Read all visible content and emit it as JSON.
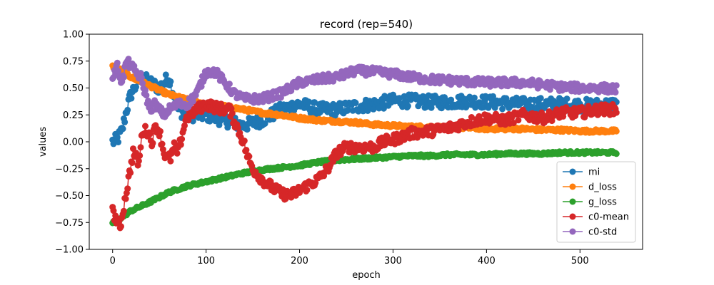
{
  "chart_data": {
    "type": "line",
    "title": "record (rep=540)",
    "xlabel": "epoch",
    "ylabel": "values",
    "xlim": [
      -25,
      567
    ],
    "ylim": [
      -1.0,
      1.0
    ],
    "x_ticks": [
      0,
      100,
      200,
      300,
      400,
      500
    ],
    "y_ticks": [
      -1.0,
      -0.75,
      -0.5,
      -0.25,
      0.0,
      0.25,
      0.5,
      0.75,
      1.0
    ],
    "y_tick_labels": [
      "−1.00",
      "−0.75",
      "−0.50",
      "−0.25",
      "0.00",
      "0.25",
      "0.50",
      "0.75",
      "1.00"
    ],
    "x_tick_labels": [
      "0",
      "100",
      "200",
      "300",
      "400",
      "500"
    ],
    "grid": false,
    "legend_position": "lower-right",
    "marker": "circle",
    "x_range": [
      0,
      539
    ],
    "series": [
      {
        "name": "mi",
        "color": "#1f77b4",
        "anchors": [
          [
            0,
            0.0
          ],
          [
            5,
            0.02
          ],
          [
            10,
            0.1
          ],
          [
            15,
            0.3
          ],
          [
            20,
            0.45
          ],
          [
            30,
            0.6
          ],
          [
            40,
            0.55
          ],
          [
            50,
            0.5
          ],
          [
            60,
            0.6
          ],
          [
            65,
            0.45
          ],
          [
            70,
            0.3
          ],
          [
            80,
            0.25
          ],
          [
            100,
            0.25
          ],
          [
            120,
            0.2
          ],
          [
            140,
            0.15
          ],
          [
            160,
            0.2
          ],
          [
            180,
            0.3
          ],
          [
            200,
            0.35
          ],
          [
            220,
            0.3
          ],
          [
            240,
            0.3
          ],
          [
            260,
            0.33
          ],
          [
            280,
            0.35
          ],
          [
            300,
            0.38
          ],
          [
            320,
            0.38
          ],
          [
            340,
            0.37
          ],
          [
            360,
            0.37
          ],
          [
            380,
            0.38
          ],
          [
            400,
            0.37
          ],
          [
            420,
            0.36
          ],
          [
            440,
            0.35
          ],
          [
            460,
            0.35
          ],
          [
            480,
            0.35
          ],
          [
            500,
            0.34
          ],
          [
            520,
            0.34
          ],
          [
            539,
            0.35
          ]
        ],
        "noise": 0.06
      },
      {
        "name": "d_loss",
        "color": "#ff7f0e",
        "anchors": [
          [
            0,
            0.7
          ],
          [
            10,
            0.66
          ],
          [
            20,
            0.6
          ],
          [
            40,
            0.52
          ],
          [
            60,
            0.44
          ],
          [
            80,
            0.39
          ],
          [
            100,
            0.35
          ],
          [
            120,
            0.33
          ],
          [
            140,
            0.3
          ],
          [
            160,
            0.27
          ],
          [
            180,
            0.25
          ],
          [
            200,
            0.22
          ],
          [
            220,
            0.2
          ],
          [
            240,
            0.19
          ],
          [
            260,
            0.18
          ],
          [
            280,
            0.16
          ],
          [
            300,
            0.15
          ],
          [
            320,
            0.14
          ],
          [
            340,
            0.14
          ],
          [
            360,
            0.13
          ],
          [
            380,
            0.13
          ],
          [
            400,
            0.12
          ],
          [
            420,
            0.12
          ],
          [
            440,
            0.12
          ],
          [
            460,
            0.11
          ],
          [
            480,
            0.11
          ],
          [
            500,
            0.1
          ],
          [
            520,
            0.1
          ],
          [
            539,
            0.1
          ]
        ],
        "noise": 0.015
      },
      {
        "name": "g_loss",
        "color": "#2ca02c",
        "anchors": [
          [
            0,
            -0.75
          ],
          [
            10,
            -0.7
          ],
          [
            20,
            -0.64
          ],
          [
            40,
            -0.56
          ],
          [
            60,
            -0.47
          ],
          [
            80,
            -0.41
          ],
          [
            100,
            -0.37
          ],
          [
            120,
            -0.33
          ],
          [
            140,
            -0.29
          ],
          [
            160,
            -0.26
          ],
          [
            180,
            -0.24
          ],
          [
            200,
            -0.22
          ],
          [
            220,
            -0.19
          ],
          [
            240,
            -0.17
          ],
          [
            260,
            -0.16
          ],
          [
            280,
            -0.15
          ],
          [
            300,
            -0.14
          ],
          [
            320,
            -0.13
          ],
          [
            340,
            -0.13
          ],
          [
            360,
            -0.12
          ],
          [
            380,
            -0.12
          ],
          [
            400,
            -0.12
          ],
          [
            420,
            -0.11
          ],
          [
            440,
            -0.11
          ],
          [
            460,
            -0.11
          ],
          [
            480,
            -0.1
          ],
          [
            500,
            -0.1
          ],
          [
            520,
            -0.1
          ],
          [
            539,
            -0.1
          ]
        ],
        "noise": 0.012
      },
      {
        "name": "c0-mean",
        "color": "#d62728",
        "anchors": [
          [
            0,
            -0.65
          ],
          [
            8,
            -0.8
          ],
          [
            12,
            -0.6
          ],
          [
            18,
            -0.3
          ],
          [
            22,
            -0.1
          ],
          [
            28,
            -0.2
          ],
          [
            32,
            0.1
          ],
          [
            38,
            0.1
          ],
          [
            42,
            0.0
          ],
          [
            46,
            0.15
          ],
          [
            50,
            0.1
          ],
          [
            55,
            -0.1
          ],
          [
            58,
            -0.15
          ],
          [
            62,
            -0.15
          ],
          [
            66,
            -0.05
          ],
          [
            70,
            -0.1
          ],
          [
            74,
            0.05
          ],
          [
            78,
            0.2
          ],
          [
            82,
            0.25
          ],
          [
            90,
            0.3
          ],
          [
            100,
            0.35
          ],
          [
            110,
            0.32
          ],
          [
            120,
            0.3
          ],
          [
            125,
            0.3
          ],
          [
            130,
            0.2
          ],
          [
            135,
            0.1
          ],
          [
            140,
            0.0
          ],
          [
            145,
            -0.15
          ],
          [
            150,
            -0.25
          ],
          [
            160,
            -0.35
          ],
          [
            170,
            -0.42
          ],
          [
            180,
            -0.48
          ],
          [
            190,
            -0.5
          ],
          [
            200,
            -0.45
          ],
          [
            210,
            -0.4
          ],
          [
            220,
            -0.35
          ],
          [
            230,
            -0.25
          ],
          [
            240,
            -0.1
          ],
          [
            250,
            -0.05
          ],
          [
            260,
            -0.05
          ],
          [
            270,
            -0.05
          ],
          [
            280,
            -0.05
          ],
          [
            290,
            0.0
          ],
          [
            300,
            0.02
          ],
          [
            310,
            0.05
          ],
          [
            320,
            0.08
          ],
          [
            340,
            0.1
          ],
          [
            360,
            0.13
          ],
          [
            380,
            0.18
          ],
          [
            400,
            0.22
          ],
          [
            420,
            0.2
          ],
          [
            440,
            0.25
          ],
          [
            460,
            0.22
          ],
          [
            480,
            0.27
          ],
          [
            500,
            0.27
          ],
          [
            520,
            0.3
          ],
          [
            539,
            0.3
          ]
        ],
        "noise": 0.05
      },
      {
        "name": "c0-std",
        "color": "#9467bd",
        "anchors": [
          [
            0,
            0.6
          ],
          [
            5,
            0.7
          ],
          [
            10,
            0.55
          ],
          [
            15,
            0.75
          ],
          [
            20,
            0.7
          ],
          [
            25,
            0.65
          ],
          [
            30,
            0.6
          ],
          [
            35,
            0.45
          ],
          [
            40,
            0.3
          ],
          [
            45,
            0.35
          ],
          [
            50,
            0.3
          ],
          [
            55,
            0.25
          ],
          [
            60,
            0.3
          ],
          [
            70,
            0.35
          ],
          [
            80,
            0.35
          ],
          [
            90,
            0.45
          ],
          [
            100,
            0.65
          ],
          [
            110,
            0.65
          ],
          [
            120,
            0.55
          ],
          [
            130,
            0.45
          ],
          [
            140,
            0.4
          ],
          [
            160,
            0.4
          ],
          [
            180,
            0.45
          ],
          [
            200,
            0.55
          ],
          [
            220,
            0.58
          ],
          [
            240,
            0.6
          ],
          [
            260,
            0.66
          ],
          [
            280,
            0.65
          ],
          [
            300,
            0.63
          ],
          [
            320,
            0.6
          ],
          [
            340,
            0.58
          ],
          [
            360,
            0.57
          ],
          [
            380,
            0.56
          ],
          [
            400,
            0.55
          ],
          [
            420,
            0.55
          ],
          [
            440,
            0.55
          ],
          [
            460,
            0.53
          ],
          [
            480,
            0.51
          ],
          [
            500,
            0.5
          ],
          [
            520,
            0.5
          ],
          [
            539,
            0.49
          ]
        ],
        "noise": 0.04
      }
    ]
  }
}
